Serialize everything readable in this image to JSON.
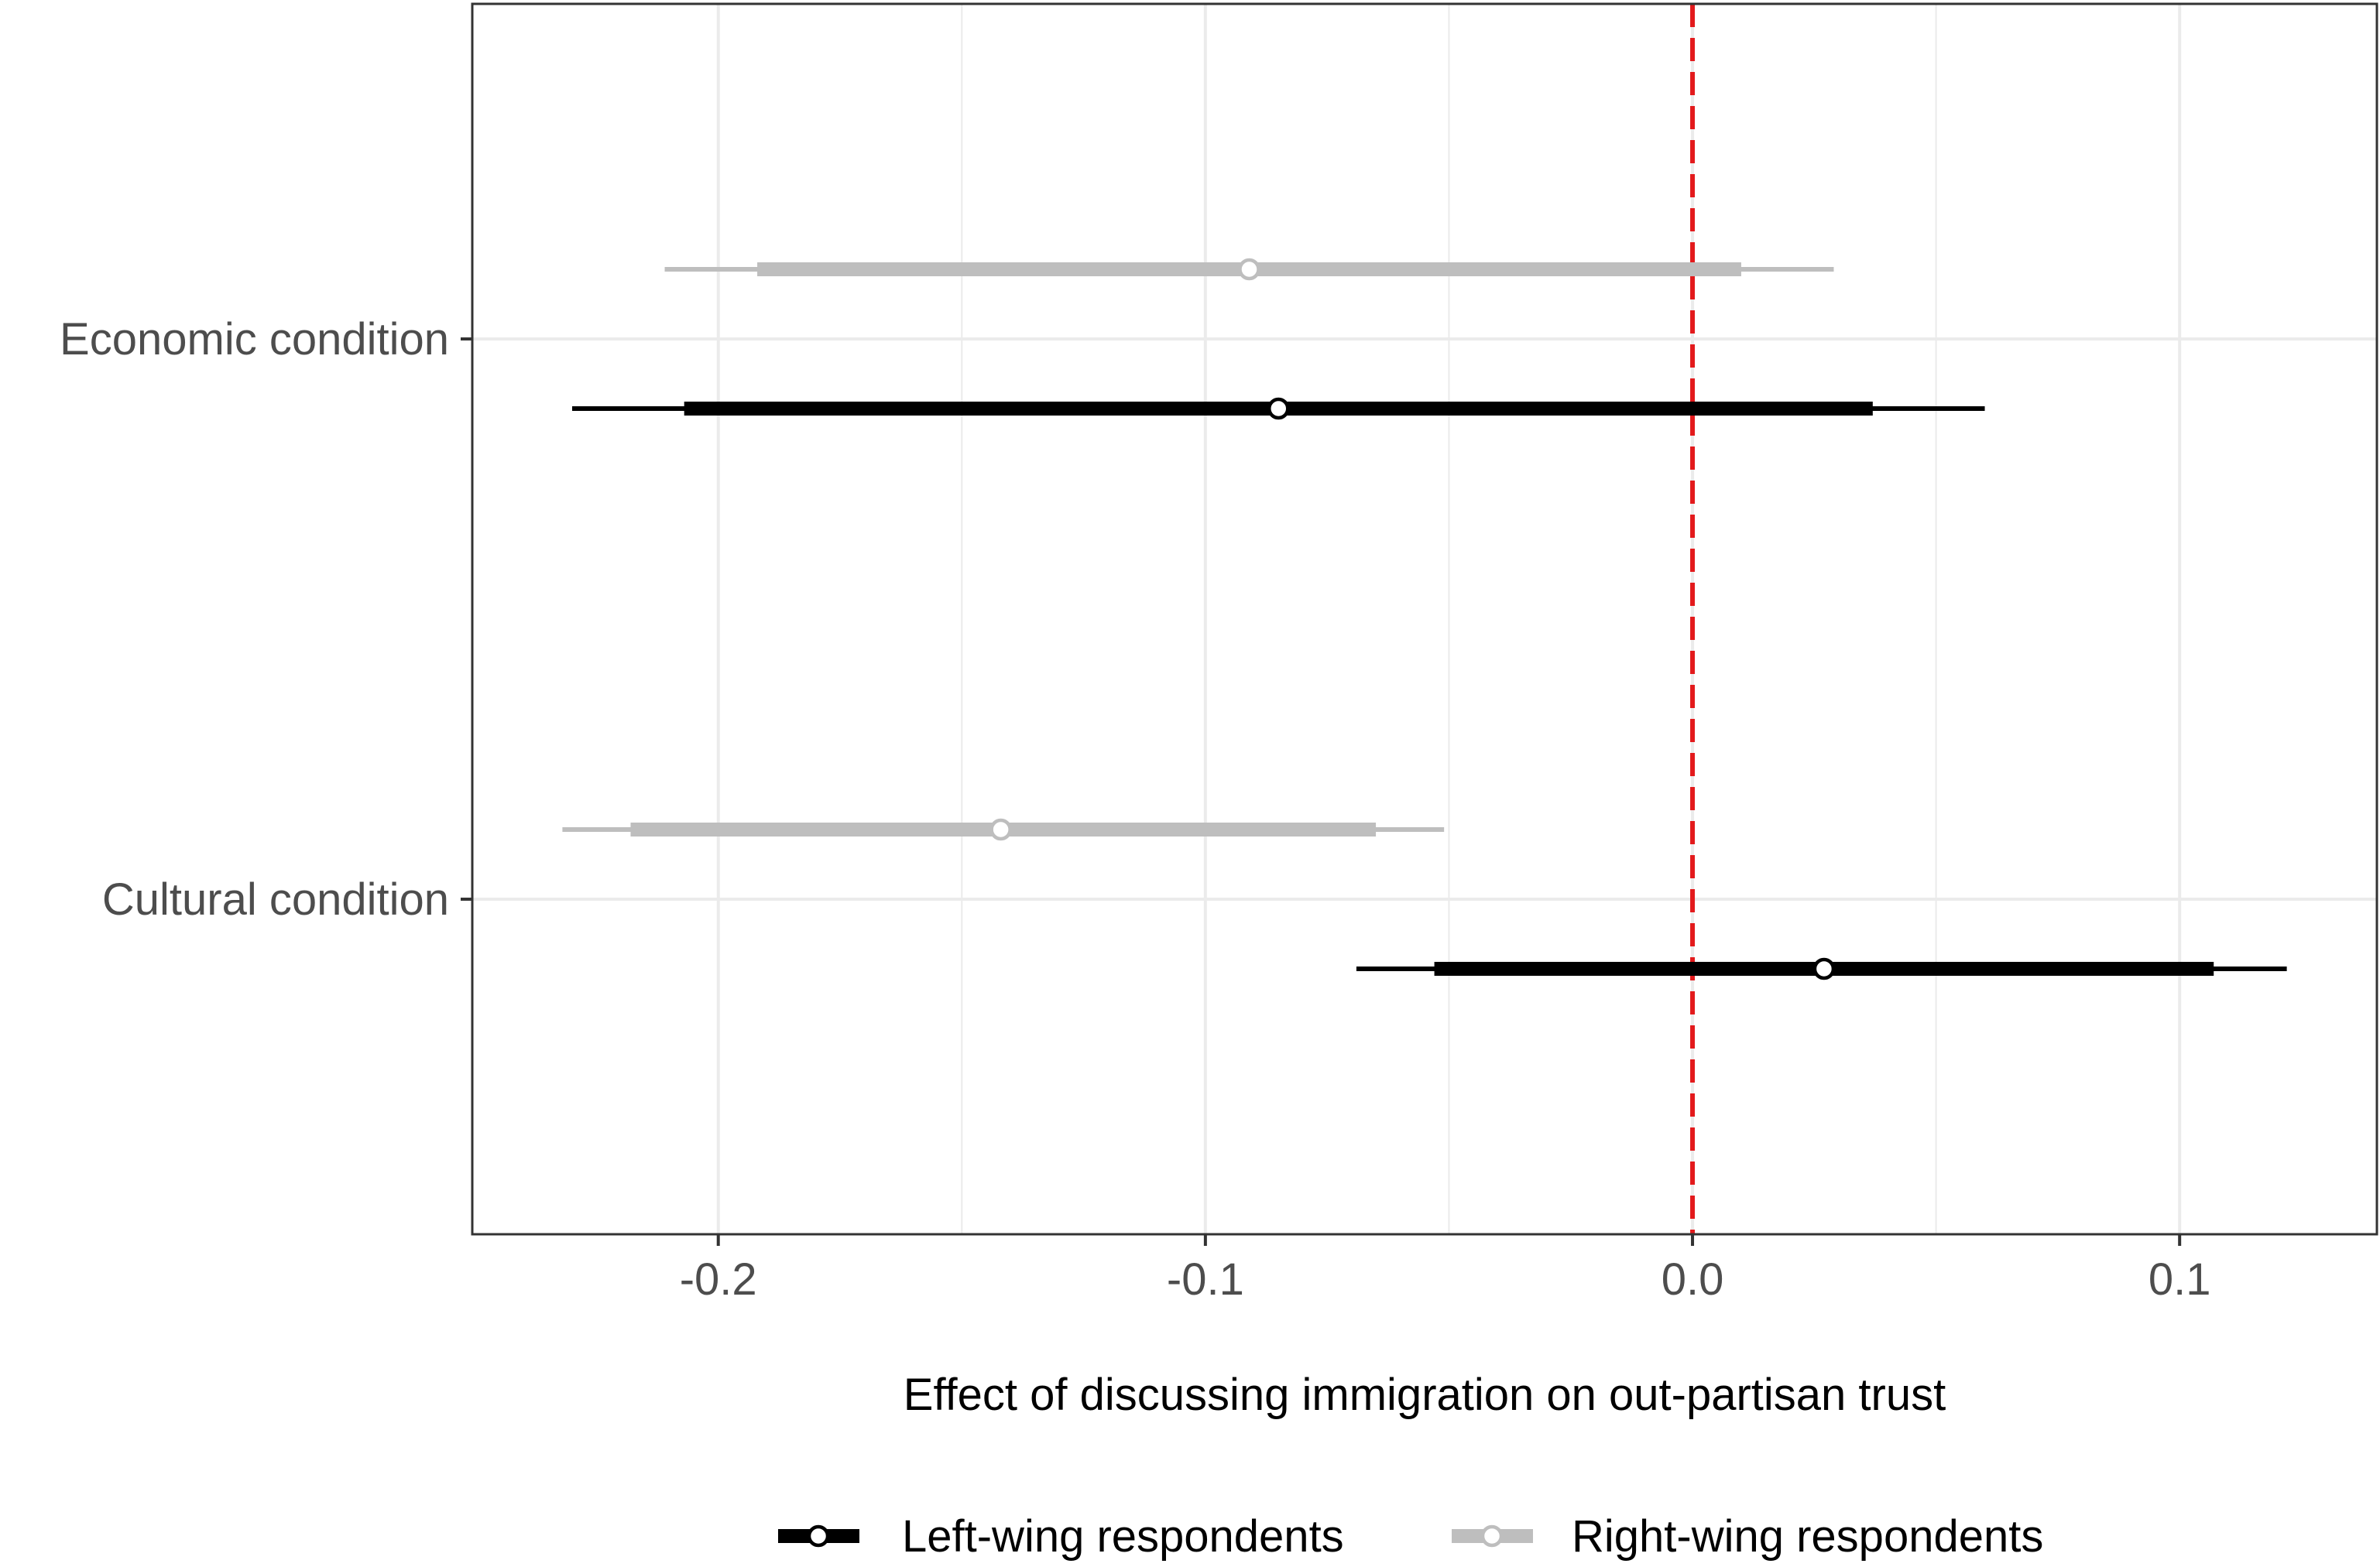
{
  "chart_data": {
    "type": "coefficient-plot",
    "xlabel": "Effect of discussing immigration on out-partisan trust",
    "ylabel": "",
    "xlim": [
      -0.2505,
      0.1405
    ],
    "x_ticks": [
      -0.2,
      -0.1,
      0.0,
      0.1
    ],
    "x_tick_labels": [
      "-0.2",
      "-0.1",
      "0.0",
      "0.1"
    ],
    "x_minor_ticks": [
      -0.15,
      -0.05,
      0.05
    ],
    "categories": [
      "Economic condition",
      "Cultural condition"
    ],
    "reference_line": {
      "x": 0.0,
      "color": "#e31a1c",
      "style": "dashed"
    },
    "grid": true,
    "legend": {
      "position": "bottom"
    },
    "series": [
      {
        "name": "Left-wing respondents",
        "color": "#000000",
        "points": [
          {
            "category": "Economic condition",
            "estimate": -0.085,
            "ci90": [
              -0.207,
              0.037
            ],
            "ci95": [
              -0.23,
              0.06
            ]
          },
          {
            "category": "Cultural condition",
            "estimate": 0.027,
            "ci90": [
              -0.053,
              0.107
            ],
            "ci95": [
              -0.069,
              0.122
            ]
          }
        ]
      },
      {
        "name": "Right-wing respondents",
        "color": "#bebebe",
        "points": [
          {
            "category": "Economic condition",
            "estimate": -0.091,
            "ci90": [
              -0.192,
              0.01
            ],
            "ci95": [
              -0.211,
              0.029
            ]
          },
          {
            "category": "Cultural condition",
            "estimate": -0.142,
            "ci90": [
              -0.218,
              -0.065
            ],
            "ci95": [
              -0.232,
              -0.051
            ]
          }
        ]
      }
    ]
  }
}
